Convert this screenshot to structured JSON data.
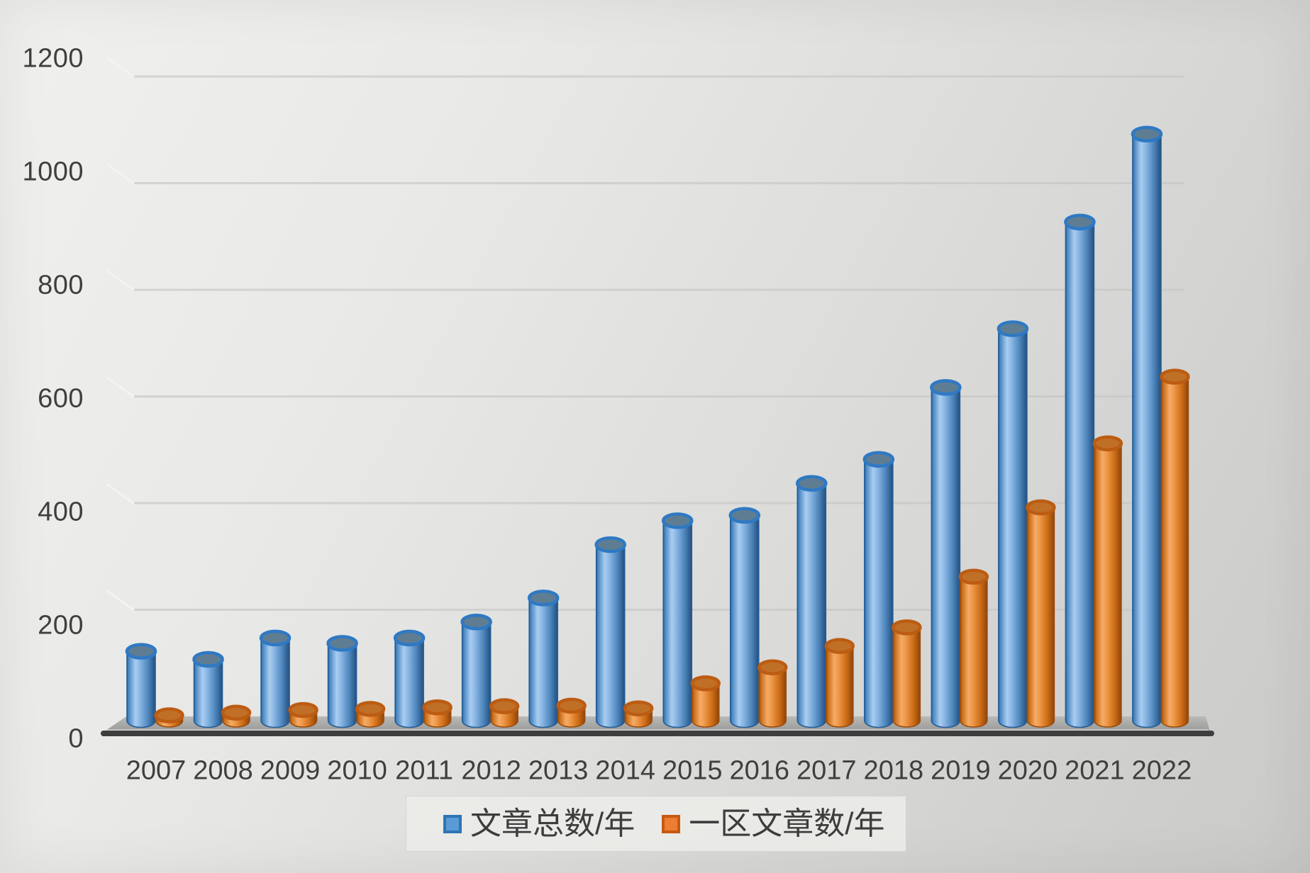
{
  "chart_data": {
    "type": "bar",
    "subtype": "3d-cylinder-clustered",
    "title": "",
    "xlabel": "",
    "ylabel": "",
    "categories": [
      "2007",
      "2008",
      "2009",
      "2010",
      "2011",
      "2012",
      "2013",
      "2014",
      "2015",
      "2016",
      "2017",
      "2018",
      "2019",
      "2020",
      "2021",
      "2022"
    ],
    "series": [
      {
        "name": "文章总数/年",
        "color": "#5B9BD5",
        "border_color": "#2E75B6",
        "values": [
          130,
          115,
          155,
          145,
          155,
          185,
          230,
          330,
          375,
          385,
          445,
          490,
          625,
          735,
          935,
          1100
        ]
      },
      {
        "name": "一区文章数/年",
        "color": "#ED7D31",
        "border_color": "#C55A11",
        "values": [
          10,
          15,
          20,
          22,
          25,
          27,
          28,
          23,
          70,
          100,
          140,
          175,
          270,
          400,
          520,
          645
        ]
      }
    ],
    "ylim": [
      0,
      1200
    ],
    "ytick_step": 200,
    "yticks": [
      "0",
      "200",
      "400",
      "600",
      "800",
      "1000",
      "1200"
    ],
    "grid": true,
    "legend_position": "bottom",
    "background": "gray-gradient-wall"
  },
  "colors": {
    "grid_line": "#c6c6c4",
    "grid_bend_highlight": "#f4f4f2",
    "axis_line": "#3e3e3e",
    "floor_top": "#b7b7b5",
    "floor_bottom": "#9b9b99",
    "tick_text": "#3f3f3f",
    "legend_text": "#3d3d3d"
  },
  "legend": {
    "items": [
      {
        "label": "文章总数/年",
        "swatch": "blue-square"
      },
      {
        "label": "一区文章数/年",
        "swatch": "orange-square"
      }
    ]
  }
}
